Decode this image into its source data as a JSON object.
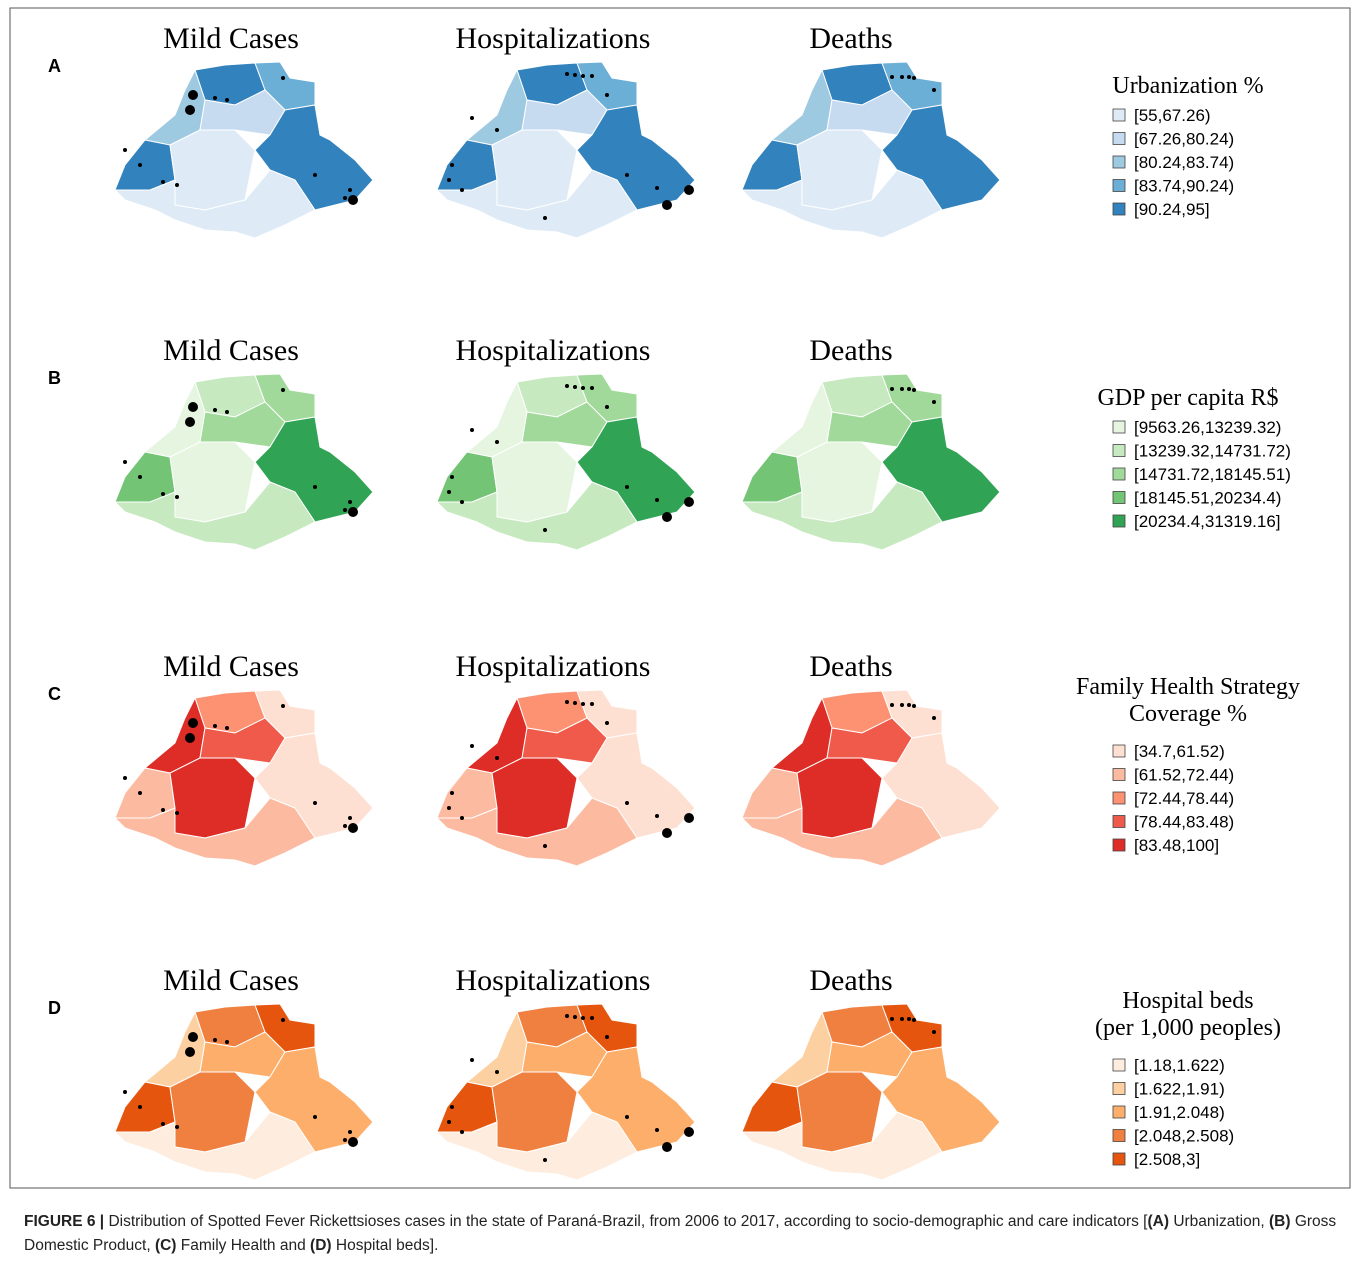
{
  "panels": [
    {
      "letter": "A",
      "maps": [
        "Mild Cases",
        "Hospitalizations",
        "Deaths"
      ],
      "legend": {
        "title": [
          "Urbanization %"
        ],
        "items": [
          "[55,67.26)",
          "[67.26,80.24)",
          "[80.24,83.74)",
          "[83.74,90.24)",
          "[90.24,95]"
        ],
        "colors": [
          "#deebf7",
          "#c6dbef",
          "#9ecae1",
          "#6baed6",
          "#3182bd"
        ]
      }
    },
    {
      "letter": "B",
      "maps": [
        "Mild Cases",
        "Hospitalizations",
        "Deaths"
      ],
      "legend": {
        "title": [
          "GDP per capita R$"
        ],
        "items": [
          "[9563.26,13239.32)",
          "[13239.32,14731.72)",
          "[14731.72,18145.51)",
          "[18145.51,20234.4)",
          "[20234.4,31319.16]"
        ],
        "colors": [
          "#e5f5e0",
          "#c7e9c0",
          "#a1d99b",
          "#74c476",
          "#31a354"
        ]
      }
    },
    {
      "letter": "C",
      "maps": [
        "Mild Cases",
        "Hospitalizations",
        "Deaths"
      ],
      "legend": {
        "title": [
          "Family Health Strategy",
          "Coverage %"
        ],
        "items": [
          "[34.7,61.52)",
          "[61.52,72.44)",
          "[72.44,78.44)",
          "[78.44,83.48)",
          "[83.48,100]"
        ],
        "colors": [
          "#fee0d2",
          "#fcbba1",
          "#fc9272",
          "#ef5a4b",
          "#de2d26"
        ]
      }
    },
    {
      "letter": "D",
      "maps": [
        "Mild Cases",
        "Hospitalizations",
        "Deaths"
      ],
      "legend": {
        "title": [
          "Hospital beds",
          "(per 1,000 peoples)"
        ],
        "items": [
          "[1.18,1.622)",
          "[1.622,1.91)",
          "[1.91,2.048)",
          "[2.048,2.508)",
          "[2.508,3]"
        ],
        "colors": [
          "#feedde",
          "#fdd0a2",
          "#fdae6b",
          "#f08040",
          "#e6550d"
        ]
      }
    }
  ],
  "caption": {
    "label": "FIGURE 6 |",
    "text": "Distribution of Spotted Fever Rickettsioses cases in the state of Paraná-Brazil, from 2006 to 2017, according to socio-demographic and care indicators [",
    "items": [
      {
        "key": "(A)",
        "name": "Urbanization,"
      },
      {
        "key": "(B)",
        "name": "Gross Domestic Product,"
      },
      {
        "key": "(C)",
        "name": "Family Health and"
      },
      {
        "key": "(D)",
        "name": "Hospital beds"
      }
    ],
    "end": "]."
  }
}
